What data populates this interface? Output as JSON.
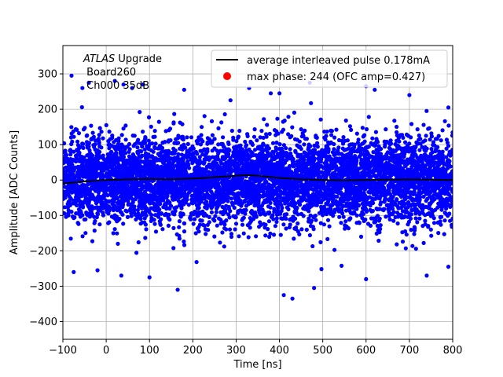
{
  "chart_data": {
    "type": "scatter",
    "xlabel": "Time [ns]",
    "ylabel": "Amplitude [ADC Counts]",
    "xlim": [
      -100,
      800
    ],
    "ylim": [
      -450,
      380
    ],
    "x_ticks": [
      -100,
      0,
      100,
      200,
      300,
      400,
      500,
      600,
      700,
      800
    ],
    "y_ticks": [
      -400,
      -300,
      -200,
      -100,
      0,
      100,
      200,
      300
    ],
    "grid": true,
    "legend_position": "top-right",
    "annotation": {
      "line1_italic": "ATLAS",
      "line1_rest": " Upgrade",
      "line2": " Board260",
      "line3": " Ch000 35dB"
    },
    "series": [
      {
        "name": "average interleaved pulse 0.178mA",
        "kind": "line",
        "color": "#000000",
        "x": [
          -100,
          -50,
          0,
          50,
          100,
          150,
          200,
          250,
          300,
          325,
          350,
          400,
          450,
          500,
          550,
          600,
          650,
          700,
          750,
          800
        ],
        "y": [
          -10,
          -4,
          0,
          2,
          3,
          2,
          4,
          8,
          12,
          14,
          12,
          6,
          2,
          0,
          -1,
          0,
          1,
          2,
          1,
          0
        ]
      },
      {
        "name": "max phase: 244 (OFC amp=0.427)",
        "kind": "scatter",
        "color": "#ff0000",
        "x": [],
        "y": []
      },
      {
        "name": "",
        "kind": "scatter",
        "color": "#0000ff",
        "distribution": {
          "mean": 0,
          "std": 60,
          "x_range": [
            -100,
            800
          ],
          "n_points": 6000
        },
        "outliers": {
          "x": [
            -80,
            -55,
            -40,
            20,
            40,
            60,
            85,
            180,
            330,
            380,
            400,
            470,
            600,
            620,
            700,
            790,
            -75,
            -20,
            35,
            100,
            165,
            410,
            430,
            480,
            600,
            740,
            790
          ],
          "y": [
            295,
            260,
            275,
            280,
            270,
            260,
            270,
            255,
            260,
            245,
            245,
            275,
            265,
            255,
            240,
            205,
            -260,
            -255,
            -270,
            -275,
            -310,
            -325,
            -335,
            -305,
            -280,
            -270,
            -245
          ]
        }
      }
    ]
  }
}
